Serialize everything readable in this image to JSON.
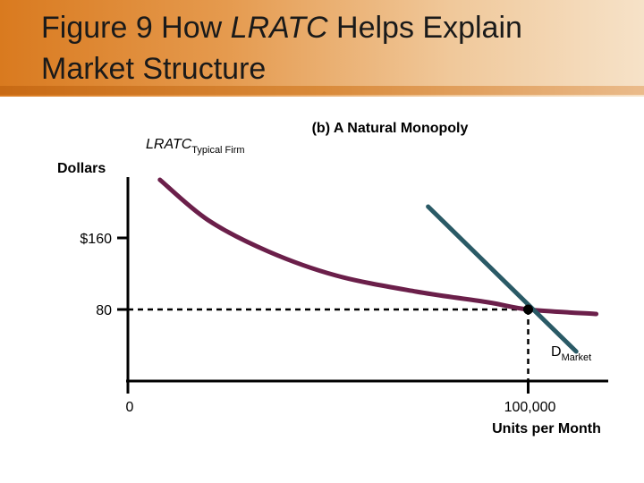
{
  "slide": {
    "title_prefix": "Figure 9 How ",
    "title_italic": "LRATC",
    "title_suffix": " Helps Explain",
    "title_line2": "Market Structure"
  },
  "chart_data": {
    "type": "line",
    "title": "(b) A Natural Monopoly",
    "ylabel": "Dollars",
    "xlabel": "Units per Month",
    "y_ticks": [
      {
        "value": 160,
        "label": "$160"
      },
      {
        "value": 80,
        "label": "80"
      }
    ],
    "x_ticks": [
      {
        "value": 0,
        "label": "0"
      },
      {
        "value": 100000,
        "label": "100,000"
      }
    ],
    "xlim": [
      0,
      120000
    ],
    "ylim": [
      0,
      230
    ],
    "series": [
      {
        "name": "LRATC",
        "name_subscript": "Typical Firm",
        "color": "#6b1f4a",
        "points": [
          [
            8000,
            225
          ],
          [
            20000,
            180
          ],
          [
            35000,
            145
          ],
          [
            52000,
            118
          ],
          [
            72000,
            100
          ],
          [
            90000,
            88
          ],
          [
            100000,
            80
          ],
          [
            117000,
            75
          ]
        ]
      },
      {
        "name": "D",
        "name_subscript": "Market",
        "color": "#2a5a66",
        "points": [
          [
            75000,
            195
          ],
          [
            112000,
            33
          ]
        ]
      }
    ],
    "intersection": {
      "x": 100000,
      "y": 80
    },
    "grid": false
  },
  "colors": {
    "title_band_start": "#d97a1f",
    "title_band_end": "#f6e2c8",
    "lratc": "#6b1f4a",
    "demand": "#2a5a66",
    "axis": "#000000"
  }
}
